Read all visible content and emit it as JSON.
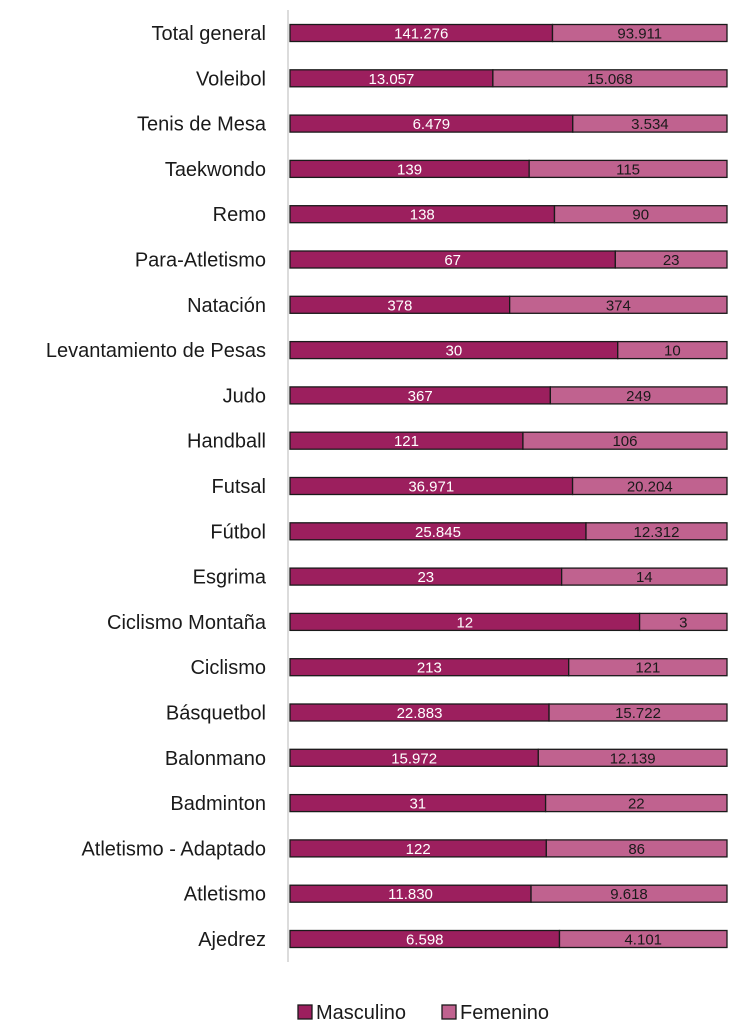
{
  "chart_data": {
    "type": "bar",
    "orientation": "horizontal",
    "stacked": "percent",
    "title": "",
    "xlabel": "",
    "ylabel": "",
    "grid": false,
    "legend_position": "bottom",
    "categories": [
      "Total general",
      "Voleibol",
      "Tenis de Mesa",
      "Taekwondo",
      "Remo",
      "Para-Atletismo",
      "Natación",
      "Levantamiento de Pesas",
      "Judo",
      "Handball",
      "Futsal",
      "Fútbol",
      "Esgrima",
      "Ciclismo Montaña",
      "Ciclismo",
      "Básquetbol",
      "Balonmano",
      "Badminton",
      "Atletismo - Adaptado",
      "Atletismo",
      "Ajedrez"
    ],
    "series": [
      {
        "name": "Masculino",
        "color": "#9c1f5e",
        "label_color": "#ffffff",
        "values": [
          141276,
          13057,
          6479,
          139,
          138,
          67,
          378,
          30,
          367,
          121,
          36971,
          25845,
          23,
          12,
          213,
          22883,
          15972,
          31,
          122,
          11830,
          6598
        ],
        "labels": [
          "141.276",
          "13.057",
          "6.479",
          "139",
          "138",
          "67",
          "378",
          "30",
          "367",
          "121",
          "36.971",
          "25.845",
          "23",
          "12",
          "213",
          "22.883",
          "15.972",
          "31",
          "122",
          "11.830",
          "6.598"
        ]
      },
      {
        "name": "Femenino",
        "color": "#c0628f",
        "label_color": "#1a1a1a",
        "values": [
          93911,
          15068,
          3534,
          115,
          90,
          23,
          374,
          10,
          249,
          106,
          20204,
          12312,
          14,
          3,
          121,
          15722,
          12139,
          22,
          86,
          9618,
          4101
        ],
        "labels": [
          "93.911",
          "15.068",
          "3.534",
          "115",
          "90",
          "23",
          "374",
          "10",
          "249",
          "106",
          "20.204",
          "12.312",
          "14",
          "3",
          "121",
          "15.722",
          "12.139",
          "22",
          "86",
          "9.618",
          "4.101"
        ]
      }
    ]
  }
}
